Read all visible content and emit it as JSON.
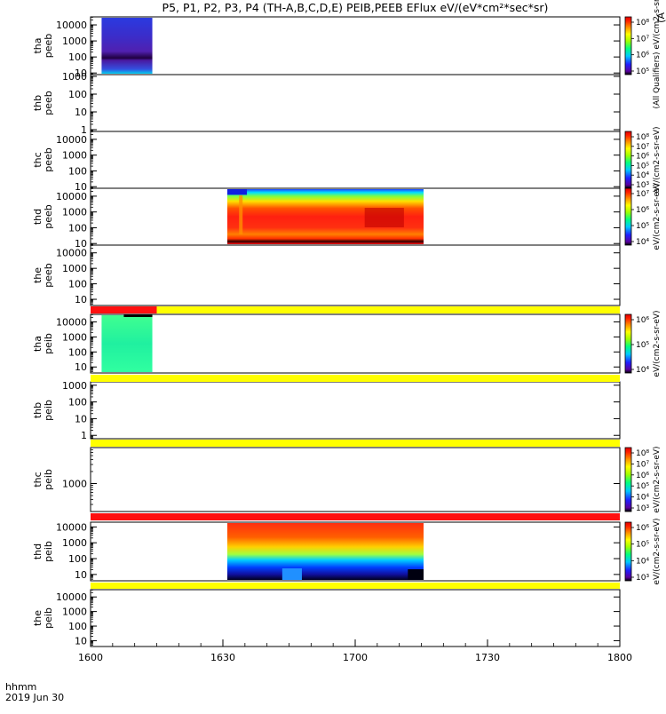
{
  "page": {
    "title": "P5, P1, P2, P3, P4 (TH-A,B,C,D,E) PEIB,PEEB EFlux eV/(eV*cm²*sec*sr)",
    "right_edge_label": "(A",
    "time_label": "hhmm",
    "date_label": "2019 Jun 30"
  },
  "colors": {
    "bar_red": "#ff1010",
    "bar_yellow": "#ffff00",
    "text": "#000000"
  },
  "chart_data": {
    "type": "heatmap",
    "x_range_minutes": [
      0,
      120
    ],
    "x_ticks": [
      {
        "label": "1600",
        "minutes": 0
      },
      {
        "label": "1630",
        "minutes": 30
      },
      {
        "label": "1700",
        "minutes": 60
      },
      {
        "label": "1730",
        "minutes": 90
      },
      {
        "label": "1800",
        "minutes": 120
      }
    ],
    "panels": [
      {
        "probe": "tha",
        "label_probe": "tha",
        "label_type": "peeb",
        "y_ticks": [
          "10000",
          "1000",
          "100",
          "10"
        ],
        "y_log_range": [
          0.9,
          4.5
        ],
        "data_extent_minutes": [
          2.5,
          14.0
        ],
        "palette": "purple",
        "colorbar": {
          "ticks": [
            "10⁸",
            "10⁷",
            "10⁶",
            "10⁵"
          ],
          "label": "(All Qualifiers) eV/(cm2-s-sr-eV)"
        }
      },
      {
        "probe": "thb",
        "label_probe": "thb",
        "label_type": "peeb",
        "y_ticks": [
          "1000",
          "100",
          "10",
          "1"
        ],
        "y_log_range": [
          -0.1,
          3.1
        ],
        "data_extent_minutes": null,
        "palette": null,
        "colorbar": null
      },
      {
        "probe": "thc",
        "label_probe": "thc",
        "label_type": "peeb",
        "y_ticks": [
          "10000",
          "1000",
          "100",
          "10"
        ],
        "y_log_range": [
          0.9,
          4.5
        ],
        "data_extent_minutes": null,
        "palette": null,
        "colorbar": {
          "ticks": [
            "10⁸",
            "10⁷",
            "10⁶",
            "10⁵",
            "10⁴",
            "10³"
          ],
          "label": "eV/(cm2-s-sr-eV)"
        }
      },
      {
        "probe": "thd",
        "label_probe": "thd",
        "label_type": "peeb",
        "y_ticks": [
          "10000",
          "1000",
          "100",
          "10"
        ],
        "y_log_range": [
          0.9,
          4.5
        ],
        "data_extent_minutes": [
          31.0,
          75.5
        ],
        "palette": "electron",
        "colorbar": {
          "ticks": [
            "10⁷",
            "10⁶",
            "10⁵",
            "10⁴"
          ],
          "label": "eV/(cm2-s-sr-eV)"
        }
      },
      {
        "probe": "the",
        "label_probe": "the",
        "label_type": "peeb",
        "y_ticks": [
          "10000",
          "1000",
          "100",
          "10"
        ],
        "y_log_range": [
          0.6,
          4.5
        ],
        "data_extent_minutes": null,
        "palette": null,
        "colorbar": null
      },
      {
        "probe": "tha",
        "label_probe": "tha",
        "label_type": "peib",
        "y_ticks": [
          "10000",
          "1000",
          "100",
          "10"
        ],
        "y_log_range": [
          0.6,
          4.5
        ],
        "data_extent_minutes": [
          2.5,
          14.0
        ],
        "palette": "green",
        "colorbar": {
          "ticks": [
            "10⁶",
            "10⁵",
            "10⁴"
          ],
          "label": "eV/(cm2-s-sr-eV)"
        }
      },
      {
        "probe": "thb",
        "label_probe": "thb",
        "label_type": "peib",
        "y_ticks": [
          "1000",
          "100",
          "10",
          "1"
        ],
        "y_log_range": [
          -0.2,
          3.2
        ],
        "data_extent_minutes": null,
        "palette": null,
        "colorbar": null
      },
      {
        "probe": "thc",
        "label_probe": "thc",
        "label_type": "peib",
        "y_ticks": [
          "1000"
        ],
        "y_log_range": [
          2.3,
          3.9
        ],
        "data_extent_minutes": null,
        "palette": null,
        "colorbar": {
          "ticks": [
            "10⁸",
            "10⁷",
            "10⁶",
            "10⁵",
            "10⁴",
            "10³"
          ],
          "label": "eV/(cm2-s-sr-eV)"
        }
      },
      {
        "probe": "thd",
        "label_probe": "thd",
        "label_type": "peib",
        "y_ticks": [
          "10000",
          "1000",
          "100",
          "10"
        ],
        "y_log_range": [
          0.6,
          4.3
        ],
        "data_extent_minutes": [
          31.0,
          75.5
        ],
        "palette": "ion",
        "colorbar": {
          "ticks": [
            "10⁶",
            "10⁵",
            "10⁴",
            "10³"
          ],
          "label": "eV/(cm2-s-sr-eV)"
        }
      },
      {
        "probe": "the",
        "label_probe": "the",
        "label_type": "peib",
        "y_ticks": [
          "10000",
          "1000",
          "100",
          "10"
        ],
        "y_log_range": [
          0.6,
          4.5
        ],
        "data_extent_minutes": null,
        "palette": null,
        "colorbar": null
      }
    ],
    "status_bars": [
      {
        "after_panel": 4,
        "segments": [
          {
            "color": "red",
            "from": 0,
            "to": 15
          },
          {
            "color": "yellow",
            "from": 15,
            "to": 120
          }
        ]
      },
      {
        "after_panel": 5,
        "segments": [
          {
            "color": "yellow",
            "from": 0,
            "to": 120
          }
        ]
      },
      {
        "after_panel": 6,
        "segments": [
          {
            "color": "yellow",
            "from": 0,
            "to": 120
          }
        ]
      },
      {
        "after_panel": 7,
        "segments": [
          {
            "color": "red",
            "from": 0,
            "to": 120
          }
        ]
      },
      {
        "after_panel": 8,
        "segments": [
          {
            "color": "yellow",
            "from": 0,
            "to": 120
          }
        ]
      }
    ]
  }
}
